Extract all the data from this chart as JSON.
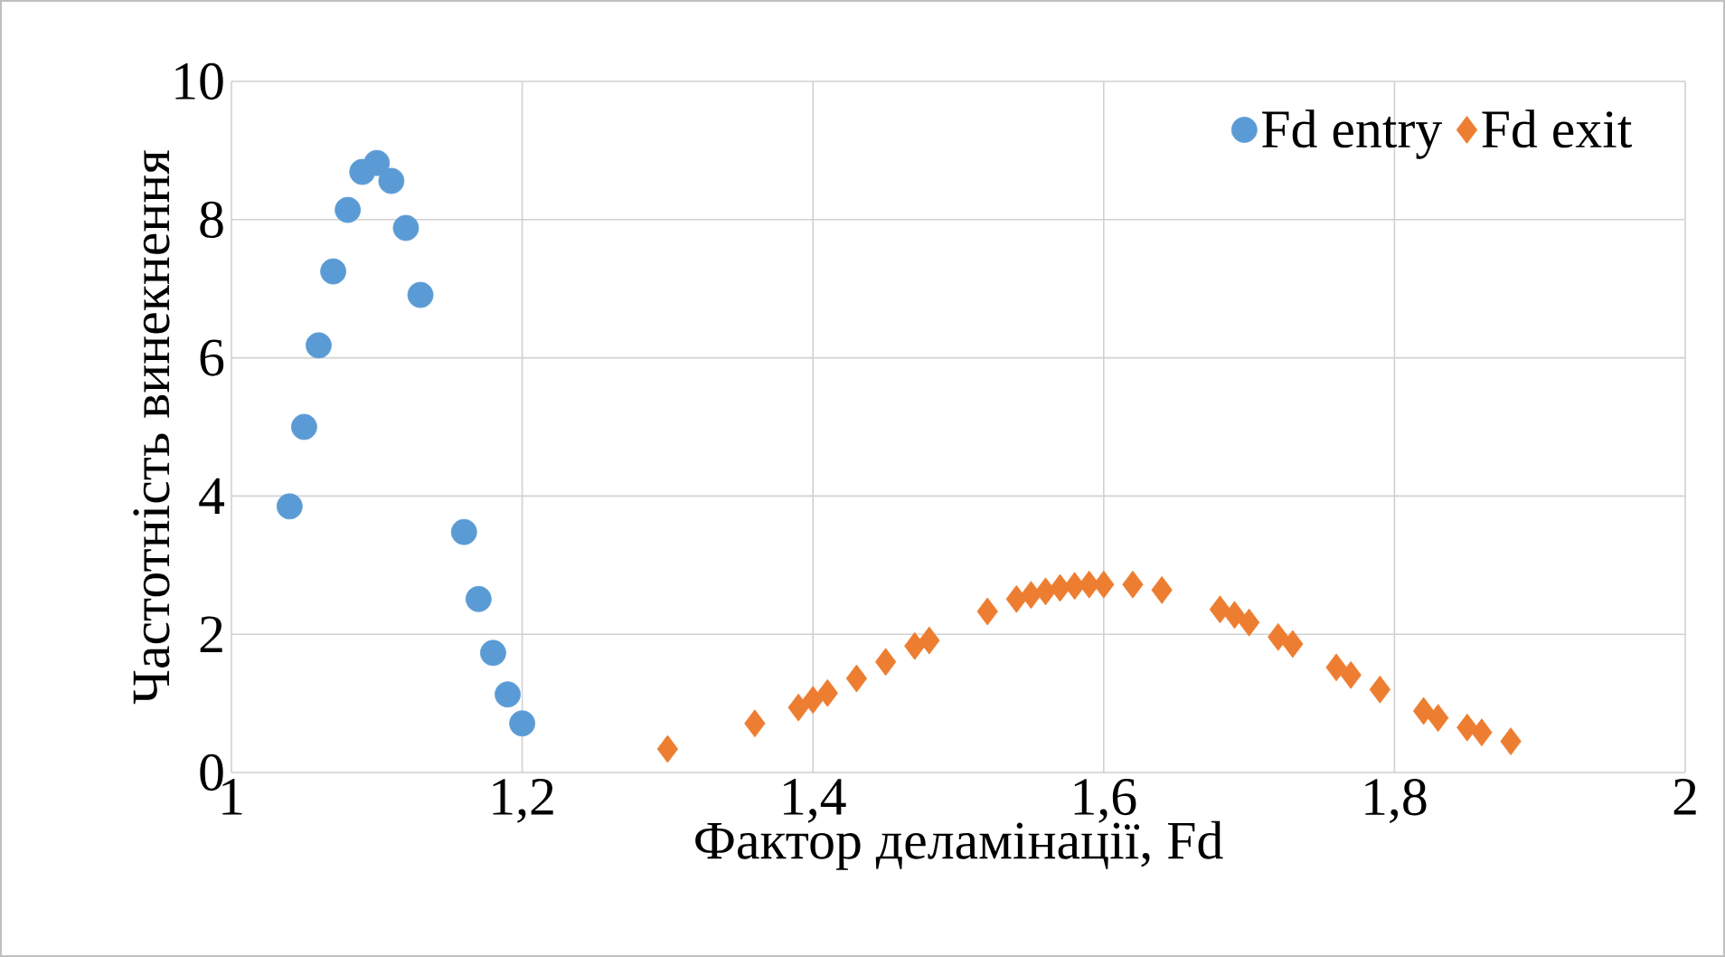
{
  "chart_data": {
    "type": "scatter",
    "xlabel": "Фактор деламінації, Fd",
    "ylabel": "Частотність винекнення",
    "xlim": [
      1,
      2
    ],
    "ylim": [
      0,
      10
    ],
    "xticks": [
      1,
      {
        "value": 1.2,
        "label": "1,2"
      },
      {
        "value": 1.4,
        "label": "1,4"
      },
      {
        "value": 1.6,
        "label": "1,6"
      },
      {
        "value": 1.8,
        "label": "1,8"
      },
      2
    ],
    "yticks": [
      0,
      2,
      4,
      6,
      8,
      10
    ],
    "grid": true,
    "legend": "top right",
    "series": [
      {
        "name": "Fd entry",
        "color": "#5b9bd5",
        "marker": "circle",
        "x": [
          1.04,
          1.05,
          1.06,
          1.07,
          1.08,
          1.09,
          1.1,
          1.11,
          1.12,
          1.13,
          1.16,
          1.17,
          1.18,
          1.19,
          1.2
        ],
        "values": [
          3.85,
          5.0,
          6.18,
          7.25,
          8.14,
          8.69,
          8.82,
          8.56,
          7.88,
          6.91,
          3.48,
          2.51,
          1.73,
          1.13,
          0.71
        ]
      },
      {
        "name": "Fd exit",
        "color": "#ed7d31",
        "marker": "diamond",
        "x": [
          1.3,
          1.36,
          1.39,
          1.4,
          1.41,
          1.43,
          1.45,
          1.47,
          1.48,
          1.52,
          1.54,
          1.55,
          1.56,
          1.57,
          1.58,
          1.59,
          1.6,
          1.62,
          1.64,
          1.68,
          1.69,
          1.7,
          1.72,
          1.73,
          1.76,
          1.77,
          1.79,
          1.82,
          1.83,
          1.85,
          1.86,
          1.88
        ],
        "values": [
          0.34,
          0.71,
          0.94,
          1.05,
          1.15,
          1.36,
          1.6,
          1.83,
          1.91,
          2.33,
          2.51,
          2.57,
          2.62,
          2.67,
          2.7,
          2.72,
          2.72,
          2.72,
          2.64,
          2.36,
          2.28,
          2.17,
          1.96,
          1.86,
          1.52,
          1.41,
          1.2,
          0.89,
          0.79,
          0.65,
          0.58,
          0.45
        ]
      }
    ]
  }
}
